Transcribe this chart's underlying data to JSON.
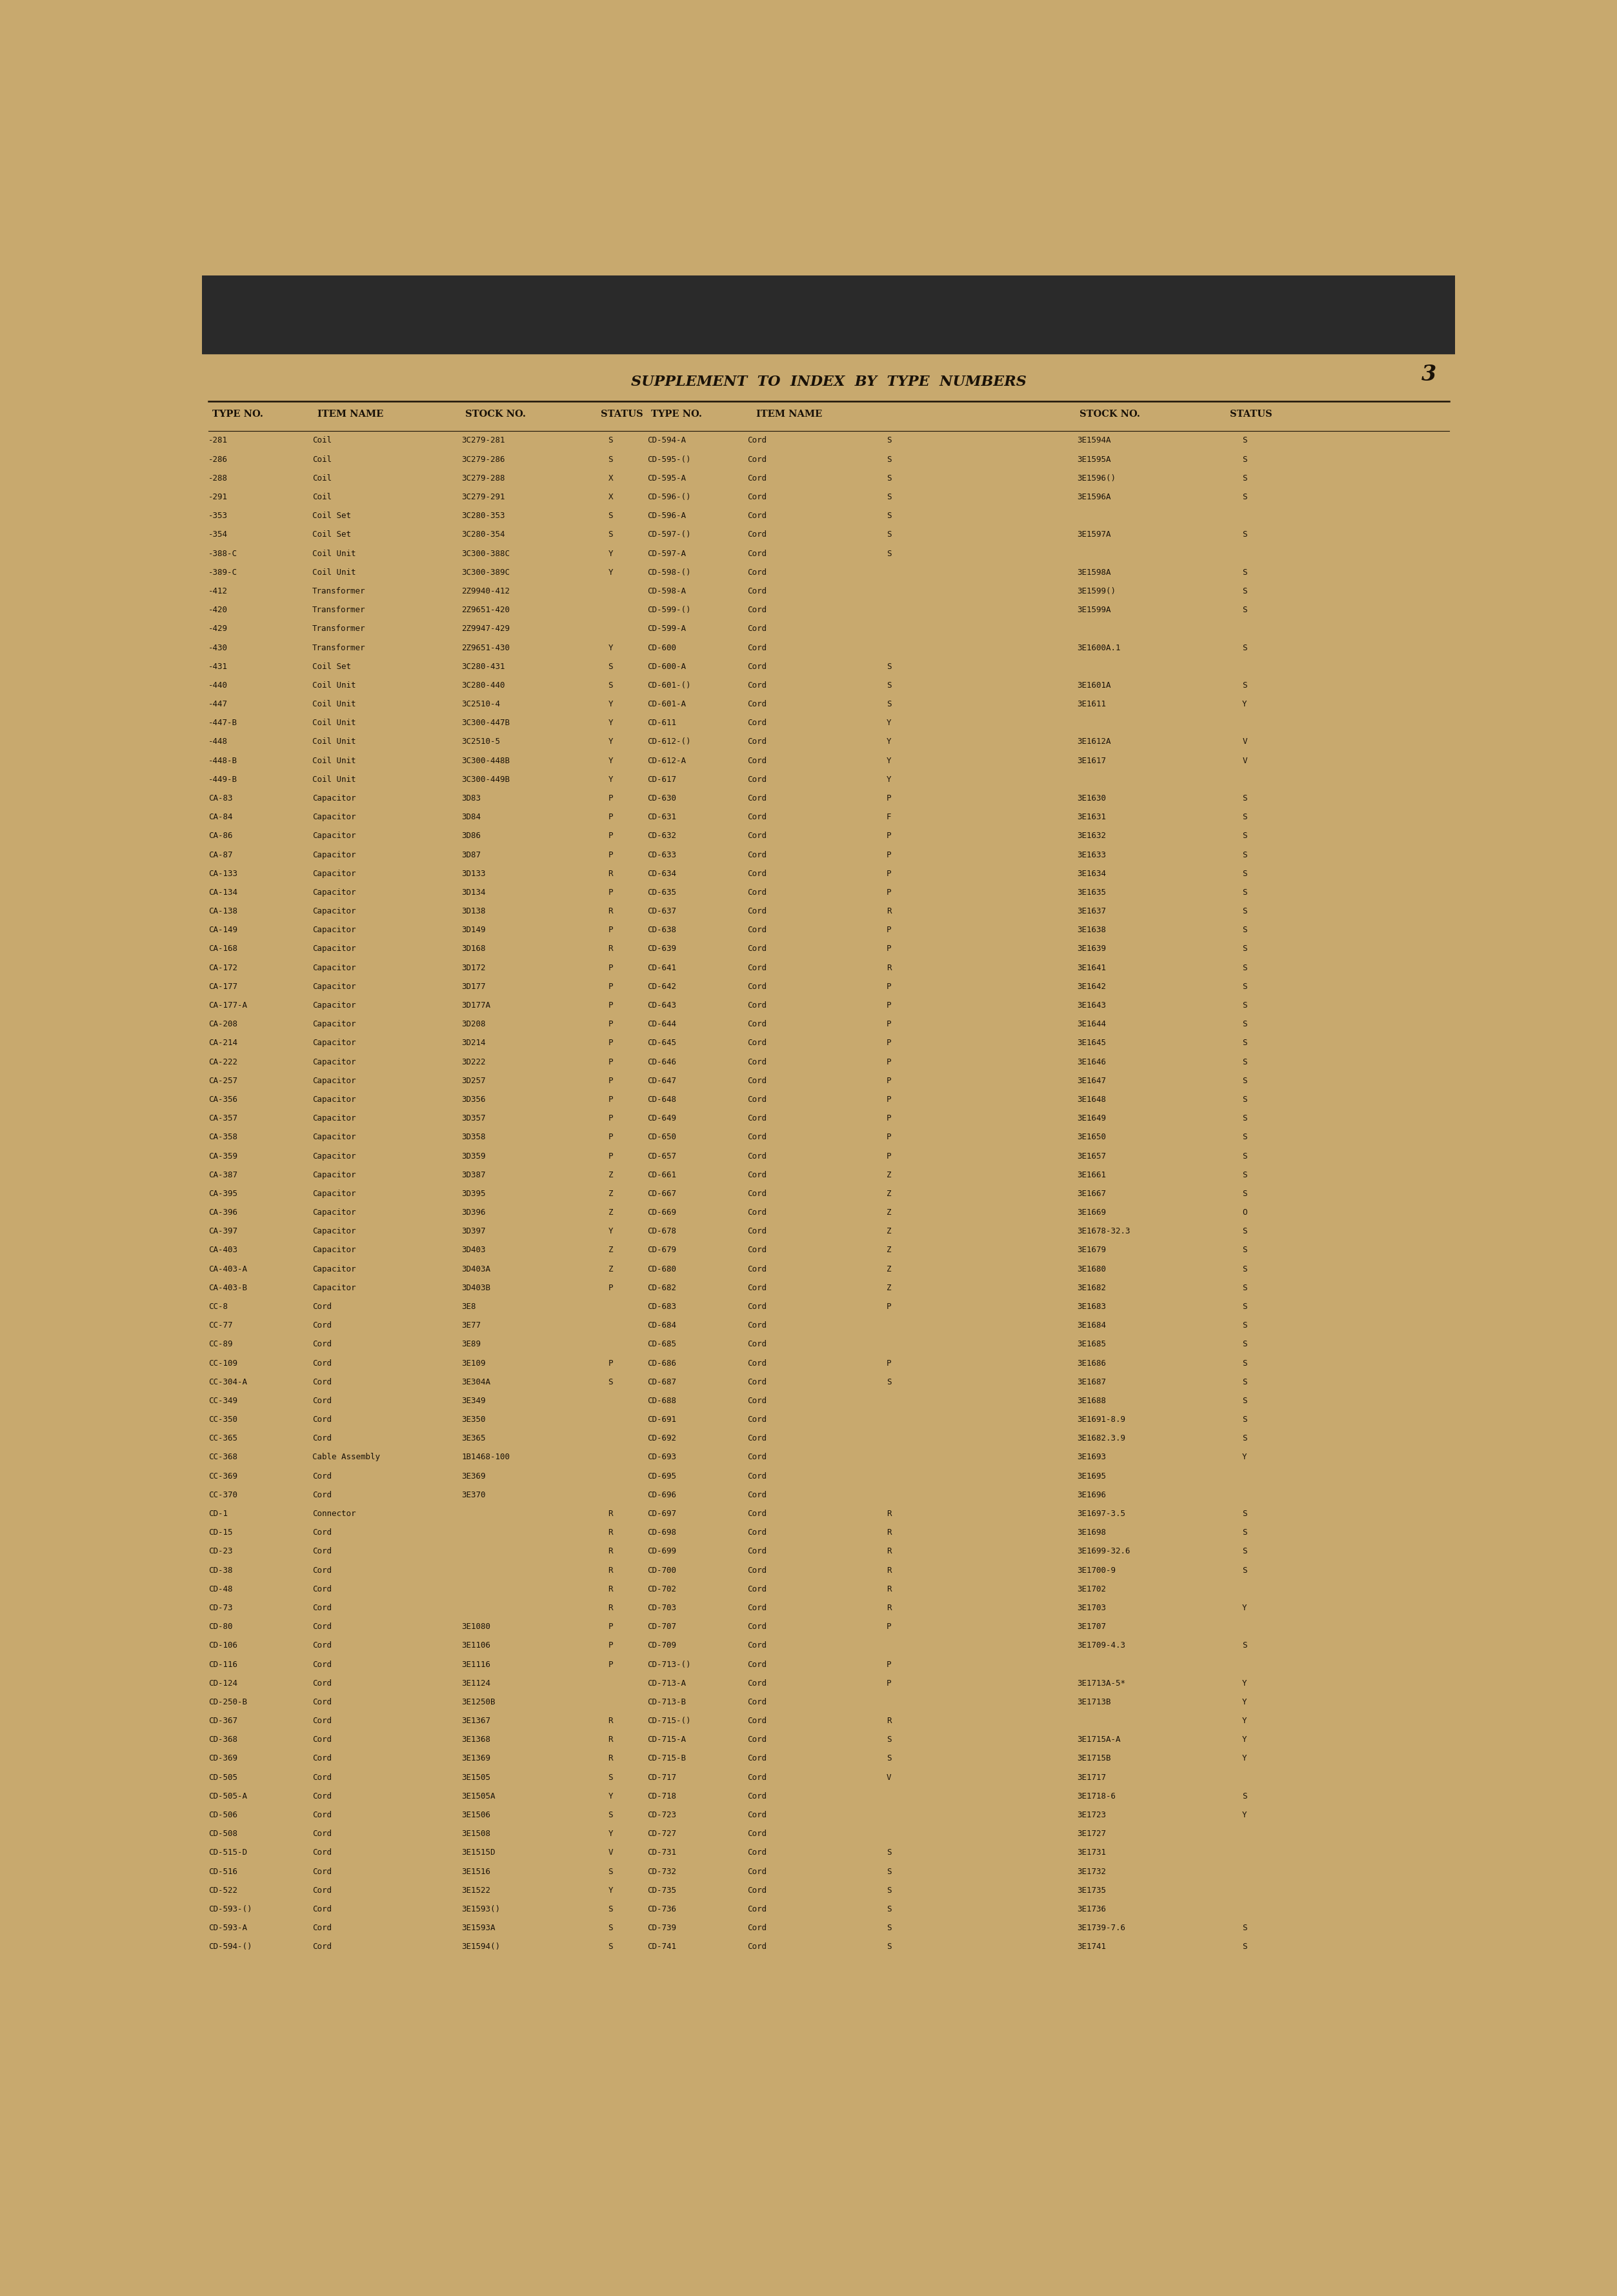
{
  "page_bg": "#c8a96e",
  "top_strip": "#2a2a2a",
  "text_color": "#1a1208",
  "title": "SUPPLEMENT  TO  INDEX  BY  TYPE  NUMBERS",
  "page_num": "3",
  "left_col": [
    [
      "-281",
      "Coil",
      "3C279-281",
      "S"
    ],
    [
      "-286",
      "Coil",
      "3C279-286",
      "S"
    ],
    [
      "-288",
      "Coil",
      "3C279-288",
      "X"
    ],
    [
      "-291",
      "Coil",
      "3C279-291",
      "X"
    ],
    [
      "-353",
      "Coil Set",
      "3C280-353",
      "S"
    ],
    [
      "-354",
      "Coil Set",
      "3C280-354",
      "S"
    ],
    [
      "-388-C",
      "Coil Unit",
      "3C300-388C",
      "Y"
    ],
    [
      "-389-C",
      "Coil Unit",
      "3C300-389C",
      "Y"
    ],
    [
      "-412",
      "Transformer",
      "2Z9940-412",
      ""
    ],
    [
      "-420",
      "Transformer",
      "2Z9651-420",
      ""
    ],
    [
      "-429",
      "Transformer",
      "2Z9947-429",
      ""
    ],
    [
      "-430",
      "Transformer",
      "2Z9651-430",
      "Y"
    ],
    [
      "-431",
      "Coil Set",
      "3C280-431",
      "S"
    ],
    [
      "-440",
      "Coil Unit",
      "3C280-440",
      "S"
    ],
    [
      "-447",
      "Coil Unit",
      "3C2510-4",
      "Y"
    ],
    [
      "-447-B",
      "Coil Unit",
      "3C300-447B",
      "Y"
    ],
    [
      "-448",
      "Coil Unit",
      "3C2510-5",
      "Y"
    ],
    [
      "-448-B",
      "Coil Unit",
      "3C300-448B",
      "Y"
    ],
    [
      "-449-B",
      "Coil Unit",
      "3C300-449B",
      "Y"
    ],
    [
      "CA-83",
      "Capacitor",
      "3D83",
      "P"
    ],
    [
      "CA-84",
      "Capacitor",
      "3D84",
      "P"
    ],
    [
      "CA-86",
      "Capacitor",
      "3D86",
      "P"
    ],
    [
      "CA-87",
      "Capacitor",
      "3D87",
      "P"
    ],
    [
      "CA-133",
      "Capacitor",
      "3D133",
      "R"
    ],
    [
      "CA-134",
      "Capacitor",
      "3D134",
      "P"
    ],
    [
      "CA-138",
      "Capacitor",
      "3D138",
      "R"
    ],
    [
      "CA-149",
      "Capacitor",
      "3D149",
      "P"
    ],
    [
      "CA-168",
      "Capacitor",
      "3D168",
      "R"
    ],
    [
      "CA-172",
      "Capacitor",
      "3D172",
      "P"
    ],
    [
      "CA-177",
      "Capacitor",
      "3D177",
      "P"
    ],
    [
      "CA-177-A",
      "Capacitor",
      "3D177A",
      "P"
    ],
    [
      "CA-208",
      "Capacitor",
      "3D208",
      "P"
    ],
    [
      "CA-214",
      "Capacitor",
      "3D214",
      "P"
    ],
    [
      "CA-222",
      "Capacitor",
      "3D222",
      "P"
    ],
    [
      "CA-257",
      "Capacitor",
      "3D257",
      "P"
    ],
    [
      "CA-356",
      "Capacitor",
      "3D356",
      "P"
    ],
    [
      "CA-357",
      "Capacitor",
      "3D357",
      "P"
    ],
    [
      "CA-358",
      "Capacitor",
      "3D358",
      "P"
    ],
    [
      "CA-359",
      "Capacitor",
      "3D359",
      "P"
    ],
    [
      "CA-387",
      "Capacitor",
      "3D387",
      "Z"
    ],
    [
      "CA-395",
      "Capacitor",
      "3D395",
      "Z"
    ],
    [
      "CA-396",
      "Capacitor",
      "3D396",
      "Z"
    ],
    [
      "CA-397",
      "Capacitor",
      "3D397",
      "Y"
    ],
    [
      "CA-403",
      "Capacitor",
      "3D403",
      "Z"
    ],
    [
      "CA-403-A",
      "Capacitor",
      "3D403A",
      "Z"
    ],
    [
      "CA-403-B",
      "Capacitor",
      "3D403B",
      "P"
    ],
    [
      "CC-8",
      "Cord",
      "3E8",
      ""
    ],
    [
      "CC-77",
      "Cord",
      "3E77",
      ""
    ],
    [
      "CC-89",
      "Cord",
      "3E89",
      ""
    ],
    [
      "CC-109",
      "Cord",
      "3E109",
      "P"
    ],
    [
      "CC-304-A",
      "Cord",
      "3E304A",
      "S"
    ],
    [
      "CC-349",
      "Cord",
      "3E349",
      ""
    ],
    [
      "CC-350",
      "Cord",
      "3E350",
      ""
    ],
    [
      "CC-365",
      "Cord",
      "3E365",
      ""
    ],
    [
      "CC-368",
      "Cable Assembly",
      "1B1468-100",
      ""
    ],
    [
      "CC-369",
      "Cord",
      "3E369",
      ""
    ],
    [
      "CC-370",
      "Cord",
      "3E370",
      ""
    ],
    [
      "CD-1",
      "Connector",
      "",
      "R"
    ],
    [
      "CD-15",
      "Cord",
      "",
      "R"
    ],
    [
      "CD-23",
      "Cord",
      "",
      "R"
    ],
    [
      "CD-38",
      "Cord",
      "",
      "R"
    ],
    [
      "CD-48",
      "Cord",
      "",
      "R"
    ],
    [
      "CD-73",
      "Cord",
      "",
      "R"
    ],
    [
      "CD-80",
      "Cord",
      "3E1080",
      "P"
    ],
    [
      "CD-106",
      "Cord",
      "3E1106",
      "P"
    ],
    [
      "CD-116",
      "Cord",
      "3E1116",
      "P"
    ],
    [
      "CD-124",
      "Cord",
      "3E1124",
      ""
    ],
    [
      "CD-250-B",
      "Cord",
      "3E1250B",
      ""
    ],
    [
      "CD-367",
      "Cord",
      "3E1367",
      "R"
    ],
    [
      "CD-368",
      "Cord",
      "3E1368",
      "R"
    ],
    [
      "CD-369",
      "Cord",
      "3E1369",
      "R"
    ],
    [
      "CD-505",
      "Cord",
      "3E1505",
      "S"
    ],
    [
      "CD-505-A",
      "Cord",
      "3E1505A",
      "Y"
    ],
    [
      "CD-506",
      "Cord",
      "3E1506",
      "S"
    ],
    [
      "CD-508",
      "Cord",
      "3E1508",
      "Y"
    ],
    [
      "CD-515-D",
      "Cord",
      "3E1515D",
      "V"
    ],
    [
      "CD-516",
      "Cord",
      "3E1516",
      "S"
    ],
    [
      "CD-522",
      "Cord",
      "3E1522",
      "Y"
    ],
    [
      "CD-593-()",
      "Cord",
      "3E1593()",
      "S"
    ],
    [
      "CD-593-A",
      "Cord",
      "3E1593A",
      "S"
    ],
    [
      "CD-594-()",
      "Cord",
      "3E1594()",
      "S"
    ]
  ],
  "mid_col": [
    [
      "CD-594-A",
      "Cord",
      "",
      "S"
    ],
    [
      "CD-595-()",
      "Cord",
      "",
      "S"
    ],
    [
      "CD-595-A",
      "Cord",
      "",
      "S"
    ],
    [
      "CD-596-()",
      "Cord",
      "",
      "S"
    ],
    [
      "CD-596-A",
      "Cord",
      "",
      "S"
    ],
    [
      "CD-597-()",
      "Cord",
      "",
      "S"
    ],
    [
      "CD-597-A",
      "Cord",
      "",
      "S"
    ],
    [
      "CD-598-()",
      "Cord",
      "",
      ""
    ],
    [
      "CD-598-A",
      "Cord",
      "",
      ""
    ],
    [
      "CD-599-()",
      "Cord",
      "",
      ""
    ],
    [
      "CD-599-A",
      "Cord",
      "",
      ""
    ],
    [
      "CD-600",
      "Cord",
      "",
      ""
    ],
    [
      "CD-600-A",
      "Cord",
      "",
      "S"
    ],
    [
      "CD-601-()",
      "Cord",
      "",
      "S"
    ],
    [
      "CD-601-A",
      "Cord",
      "",
      "S"
    ],
    [
      "CD-611",
      "Cord",
      "",
      "Y"
    ],
    [
      "CD-612-()",
      "Cord",
      "",
      "Y"
    ],
    [
      "CD-612-A",
      "Cord",
      "",
      "Y"
    ],
    [
      "CD-617",
      "Cord",
      "",
      "Y"
    ],
    [
      "CD-630",
      "Cord",
      "",
      "P"
    ],
    [
      "CD-631",
      "Cord",
      "",
      "F"
    ],
    [
      "CD-632",
      "Cord",
      "",
      "P"
    ],
    [
      "CD-633",
      "Cord",
      "",
      "P"
    ],
    [
      "CD-634",
      "Cord",
      "",
      "P"
    ],
    [
      "CD-635",
      "Cord",
      "",
      "P"
    ],
    [
      "CD-637",
      "Cord",
      "",
      "R"
    ],
    [
      "CD-638",
      "Cord",
      "",
      "P"
    ],
    [
      "CD-639",
      "Cord",
      "",
      "P"
    ],
    [
      "CD-641",
      "Cord",
      "",
      "R"
    ],
    [
      "CD-642",
      "Cord",
      "",
      "P"
    ],
    [
      "CD-643",
      "Cord",
      "",
      "P"
    ],
    [
      "CD-644",
      "Cord",
      "",
      "P"
    ],
    [
      "CD-645",
      "Cord",
      "",
      "P"
    ],
    [
      "CD-646",
      "Cord",
      "",
      "P"
    ],
    [
      "CD-647",
      "Cord",
      "",
      "P"
    ],
    [
      "CD-648",
      "Cord",
      "",
      "P"
    ],
    [
      "CD-649",
      "Cord",
      "",
      "P"
    ],
    [
      "CD-650",
      "Cord",
      "",
      "P"
    ],
    [
      "CD-657",
      "Cord",
      "",
      "P"
    ],
    [
      "CD-661",
      "Cord",
      "",
      "Z"
    ],
    [
      "CD-667",
      "Cord",
      "",
      "Z"
    ],
    [
      "CD-669",
      "Cord",
      "",
      "Z"
    ],
    [
      "CD-678",
      "Cord",
      "",
      "Z"
    ],
    [
      "CD-679",
      "Cord",
      "",
      "Z"
    ],
    [
      "CD-680",
      "Cord",
      "",
      "Z"
    ],
    [
      "CD-682",
      "Cord",
      "",
      "Z"
    ],
    [
      "CD-683",
      "Cord",
      "",
      "P"
    ],
    [
      "CD-684",
      "Cord",
      "",
      ""
    ],
    [
      "CD-685",
      "Cord",
      "",
      ""
    ],
    [
      "CD-686",
      "Cord",
      "",
      "P"
    ],
    [
      "CD-687",
      "Cord",
      "",
      "S"
    ],
    [
      "CD-688",
      "Cord",
      "",
      ""
    ],
    [
      "CD-691",
      "Cord",
      "",
      ""
    ],
    [
      "CD-692",
      "Cord",
      "",
      ""
    ],
    [
      "CD-693",
      "Cord",
      "",
      ""
    ],
    [
      "CD-695",
      "Cord",
      "",
      ""
    ],
    [
      "CD-696",
      "Cord",
      "",
      ""
    ],
    [
      "CD-697",
      "Cord",
      "",
      "R"
    ],
    [
      "CD-698",
      "Cord",
      "",
      "R"
    ],
    [
      "CD-699",
      "Cord",
      "",
      "R"
    ],
    [
      "CD-700",
      "Cord",
      "",
      "R"
    ],
    [
      "CD-702",
      "Cord",
      "",
      "R"
    ],
    [
      "CD-703",
      "Cord",
      "",
      "R"
    ],
    [
      "CD-707",
      "Cord",
      "",
      "P"
    ],
    [
      "CD-709",
      "Cord",
      "",
      ""
    ],
    [
      "CD-713-()",
      "Cord",
      "",
      "P"
    ],
    [
      "CD-713-A",
      "Cord",
      "",
      "P"
    ],
    [
      "CD-713-B",
      "Cord",
      "",
      ""
    ],
    [
      "CD-715-()",
      "Cord",
      "",
      "R"
    ],
    [
      "CD-715-A",
      "Cord",
      "",
      "S"
    ],
    [
      "CD-715-B",
      "Cord",
      "",
      "S"
    ],
    [
      "CD-717",
      "Cord",
      "",
      "V"
    ],
    [
      "CD-718",
      "Cord",
      "",
      ""
    ],
    [
      "CD-723",
      "Cord",
      "",
      ""
    ],
    [
      "CD-727",
      "Cord",
      "",
      ""
    ],
    [
      "CD-731",
      "Cord",
      "",
      "S"
    ],
    [
      "CD-732",
      "Cord",
      "",
      "S"
    ],
    [
      "CD-735",
      "Cord",
      "",
      "S"
    ],
    [
      "CD-736",
      "Cord",
      "",
      "S"
    ],
    [
      "CD-739",
      "Cord",
      "",
      "S"
    ],
    [
      "CD-741",
      "Cord",
      "",
      "S"
    ]
  ],
  "right_col": [
    [
      "3E1594A",
      "S"
    ],
    [
      "3E1595A",
      "S"
    ],
    [
      "3E1596()",
      "S"
    ],
    [
      "3E1596A",
      "S"
    ],
    [
      "",
      ""
    ],
    [
      "3E1597A",
      "S"
    ],
    [
      "",
      ""
    ],
    [
      "3E1598A",
      "S"
    ],
    [
      "3E1599()",
      "S"
    ],
    [
      "3E1599A",
      "S"
    ],
    [
      "",
      ""
    ],
    [
      "3E1600A.1",
      "S"
    ],
    [
      "",
      ""
    ],
    [
      "3E1601A",
      "S"
    ],
    [
      "3E1611",
      "Y"
    ],
    [
      "",
      ""
    ],
    [
      "3E1612A",
      "V"
    ],
    [
      "3E1617",
      "V"
    ],
    [
      "",
      ""
    ],
    [
      "3E1630",
      "S"
    ],
    [
      "3E1631",
      "S"
    ],
    [
      "3E1632",
      "S"
    ],
    [
      "3E1633",
      "S"
    ],
    [
      "3E1634",
      "S"
    ],
    [
      "3E1635",
      "S"
    ],
    [
      "3E1637",
      "S"
    ],
    [
      "3E1638",
      "S"
    ],
    [
      "3E1639",
      "S"
    ],
    [
      "3E1641",
      "S"
    ],
    [
      "3E1642",
      "S"
    ],
    [
      "3E1643",
      "S"
    ],
    [
      "3E1644",
      "S"
    ],
    [
      "3E1645",
      "S"
    ],
    [
      "3E1646",
      "S"
    ],
    [
      "3E1647",
      "S"
    ],
    [
      "3E1648",
      "S"
    ],
    [
      "3E1649",
      "S"
    ],
    [
      "3E1650",
      "S"
    ],
    [
      "3E1657",
      "S"
    ],
    [
      "3E1661",
      "S"
    ],
    [
      "3E1667",
      "S"
    ],
    [
      "3E1669",
      "O"
    ],
    [
      "3E1678-32.3",
      "S"
    ],
    [
      "3E1679",
      "S"
    ],
    [
      "3E1680",
      "S"
    ],
    [
      "3E1682",
      "S"
    ],
    [
      "3E1683",
      "S"
    ],
    [
      "3E1684",
      "S"
    ],
    [
      "3E1685",
      "S"
    ],
    [
      "3E1686",
      "S"
    ],
    [
      "3E1687",
      "S"
    ],
    [
      "3E1688",
      "S"
    ],
    [
      "3E1691-8.9",
      "S"
    ],
    [
      "3E1682.3.9",
      "S"
    ],
    [
      "3E1693",
      "Y"
    ],
    [
      "3E1695",
      ""
    ],
    [
      "3E1696",
      ""
    ],
    [
      "3E1697-3.5",
      "S"
    ],
    [
      "3E1698",
      "S"
    ],
    [
      "3E1699-32.6",
      "S"
    ],
    [
      "3E1700-9",
      "S"
    ],
    [
      "3E1702",
      ""
    ],
    [
      "3E1703",
      "Y"
    ],
    [
      "3E1707",
      ""
    ],
    [
      "3E1709-4.3",
      "S"
    ],
    [
      "",
      ""
    ],
    [
      "3E1713A-5*",
      "Y"
    ],
    [
      "3E1713B",
      "Y"
    ],
    [
      "",
      "Y"
    ],
    [
      "3E1715A-A",
      "Y"
    ],
    [
      "3E1715B",
      "Y"
    ],
    [
      "3E1717",
      ""
    ],
    [
      "3E1718-6",
      "S"
    ],
    [
      "3E1723",
      "Y"
    ],
    [
      "3E1727",
      ""
    ],
    [
      "3E1731",
      ""
    ],
    [
      "3E1732",
      ""
    ],
    [
      "3E1735",
      ""
    ],
    [
      "3E1736",
      ""
    ],
    [
      "3E1739-7.6",
      "S"
    ],
    [
      "3E1741",
      "S"
    ]
  ]
}
